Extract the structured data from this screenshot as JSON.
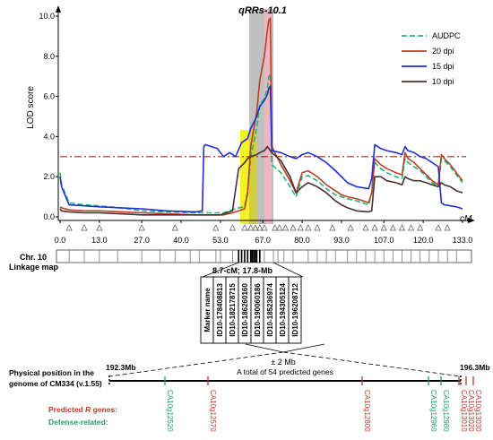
{
  "chart_data": {
    "type": "line",
    "qtl_label": "qRRs-10.1",
    "ylabel": "LOD score",
    "xunit": "cM",
    "xlim": [
      0,
      133
    ],
    "ylim": [
      0,
      10
    ],
    "yticks": [
      "0.0",
      "2.0",
      "4.0",
      "6.0",
      "8.0",
      "10.0"
    ],
    "xticks": [
      "0.0",
      "13.0",
      "27.0",
      "40.0",
      "53.0",
      "67.0",
      "80.0",
      "93.0",
      "107.0",
      "120.0",
      "133.0"
    ],
    "threshold": 3.0,
    "legend_position": "top-right",
    "series": [
      {
        "name": "AUDPC",
        "color": "#22b573",
        "dash": "6,3",
        "x": [
          0,
          0.5,
          3,
          8,
          13,
          20,
          27,
          35,
          45,
          52,
          54,
          57,
          59,
          61,
          61.5,
          62,
          63,
          65,
          66,
          67.5,
          68.5,
          69,
          69.5,
          70,
          73,
          76,
          78,
          80,
          82,
          85,
          88,
          91,
          93,
          95,
          98,
          102,
          103,
          104,
          106,
          108,
          111,
          113,
          114,
          115,
          117,
          119,
          121,
          123,
          125,
          126,
          127,
          129,
          131,
          133
        ],
        "y": [
          2.2,
          1.6,
          0.7,
          0.6,
          0.55,
          0.45,
          0.3,
          0.25,
          0.2,
          0.2,
          0.2,
          0.35,
          0.45,
          0.5,
          0.9,
          1.3,
          3.0,
          4.4,
          5.6,
          5.9,
          6.4,
          7.0,
          7.1,
          2.6,
          2.2,
          1.5,
          1.0,
          2.0,
          2.05,
          1.8,
          1.4,
          1.1,
          1.0,
          0.9,
          0.8,
          0.6,
          1.2,
          2.7,
          2.4,
          2.2,
          2.0,
          1.9,
          2.9,
          2.7,
          2.5,
          2.3,
          2.0,
          1.7,
          1.5,
          2.9,
          2.8,
          2.5,
          2.1,
          1.7
        ]
      },
      {
        "name": "20 dpi",
        "color": "#b84028",
        "dash": "",
        "x": [
          0,
          0.5,
          3,
          8,
          13,
          20,
          27,
          35,
          45,
          52,
          54,
          57,
          59,
          61,
          61.5,
          62,
          63,
          65,
          66,
          67.5,
          68.5,
          69,
          69.5,
          70,
          73,
          76,
          78,
          80,
          82,
          85,
          88,
          91,
          93,
          95,
          98,
          102,
          103,
          104,
          106,
          108,
          111,
          113,
          114,
          115,
          117,
          119,
          121,
          123,
          125,
          126,
          127,
          129,
          131,
          133
        ],
        "y": [
          0.5,
          0.45,
          0.35,
          0.3,
          0.3,
          0.25,
          0.2,
          0.15,
          0.1,
          0.1,
          0.1,
          0.2,
          0.3,
          0.4,
          0.8,
          1.2,
          3.5,
          5.2,
          6.8,
          8.0,
          9.3,
          9.8,
          9.9,
          3.5,
          2.6,
          1.8,
          1.2,
          2.2,
          2.3,
          2.0,
          1.6,
          1.3,
          1.1,
          1.0,
          0.9,
          0.7,
          1.2,
          2.9,
          2.6,
          2.4,
          2.2,
          2.1,
          3.2,
          2.9,
          2.7,
          2.4,
          2.1,
          1.8,
          1.6,
          3.1,
          2.9,
          2.6,
          2.2,
          1.8
        ]
      },
      {
        "name": "15 dpi",
        "color": "#1f2fd4",
        "dash": "",
        "x": [
          0,
          0.5,
          3,
          8,
          13,
          20,
          27,
          35,
          45,
          47,
          47.5,
          48,
          52,
          54,
          56,
          58,
          60,
          62,
          63,
          65,
          66,
          67.5,
          68.5,
          69,
          69.5,
          70,
          73,
          76,
          78,
          80,
          82,
          85,
          88,
          91,
          93,
          95,
          98,
          102,
          103,
          104,
          106,
          108,
          111,
          113,
          114,
          115,
          117,
          119,
          121,
          123,
          125,
          126,
          127,
          129,
          131,
          133
        ],
        "y": [
          2.0,
          1.5,
          0.6,
          0.55,
          0.5,
          0.45,
          0.4,
          0.3,
          0.25,
          0.3,
          3.5,
          3.6,
          3.4,
          3.0,
          3.2,
          3.0,
          3.7,
          3.9,
          4.4,
          5.0,
          5.5,
          5.8,
          6.1,
          6.4,
          6.5,
          3.3,
          3.2,
          3.0,
          2.9,
          3.1,
          3.2,
          3.0,
          2.7,
          2.3,
          2.0,
          1.7,
          1.5,
          1.4,
          1.9,
          3.6,
          3.4,
          3.3,
          3.2,
          3.1,
          3.5,
          3.3,
          3.2,
          3.0,
          2.9,
          2.7,
          2.5,
          0.7,
          0.6,
          0.55,
          0.5,
          0.4
        ]
      },
      {
        "name": "10 dpi",
        "color": "#4a3030",
        "dash": "",
        "x": [
          0,
          0.5,
          3,
          8,
          13,
          20,
          27,
          35,
          45,
          50,
          53,
          54,
          55,
          57,
          59,
          61,
          62,
          63,
          65,
          66,
          67.5,
          68.5,
          69,
          70,
          73,
          76,
          78,
          80,
          82,
          85,
          88,
          91,
          93,
          95,
          98,
          102,
          103,
          104,
          106,
          108,
          111,
          113,
          114,
          115,
          117,
          119,
          121,
          123,
          125,
          126,
          127,
          129,
          131,
          133
        ],
        "y": [
          0.4,
          0.3,
          0.25,
          0.2,
          0.2,
          0.15,
          0.1,
          0.1,
          0.1,
          0.1,
          0.1,
          0.15,
          0.2,
          0.3,
          2.4,
          2.7,
          2.9,
          3.0,
          3.1,
          3.2,
          3.3,
          3.5,
          3.4,
          3.2,
          2.8,
          2.0,
          1.2,
          1.5,
          1.7,
          1.5,
          1.2,
          0.8,
          0.6,
          0.45,
          0.3,
          0.25,
          0.3,
          2.0,
          2.0,
          1.8,
          1.7,
          1.6,
          2.0,
          1.9,
          1.8,
          1.8,
          1.7,
          1.6,
          1.5,
          1.7,
          1.6,
          1.5,
          1.3,
          1.2
        ]
      }
    ],
    "linkage": {
      "chr_label": "Chr. 10",
      "map_label": "Linkage map",
      "interval_text": "8.7-cM; 17.8-Mb",
      "marker_header": "Marker name",
      "markers": [
        "ID10-178408813",
        "ID10-182178715",
        "ID10-186260160",
        "ID10-190060186",
        "ID10-185236974",
        "ID10-194305124",
        "ID10-196208712"
      ]
    },
    "physical": {
      "label_line1": "Physical position in the",
      "label_line2": "genome of CM334 (v.1.55)",
      "start": "192.3Mb",
      "end": "196.3Mb",
      "pm": "± 2 Mb",
      "total": "A total of 54 predicted genes",
      "legend_r": "Predicted R genes:",
      "legend_d": "Defense-related:",
      "genes": [
        {
          "id": "CA10g12520",
          "type": "defense"
        },
        {
          "id": "CA10g12570",
          "type": "r"
        },
        {
          "id": "CA10g12800",
          "type": "r"
        },
        {
          "id": "CA10g12960",
          "type": "defense"
        },
        {
          "id": "CA10g12980",
          "type": "defense"
        },
        {
          "id": "CA10g13010",
          "type": "r"
        },
        {
          "id": "CA10g13020",
          "type": "r"
        },
        {
          "id": "CA10g13030",
          "type": "r"
        }
      ]
    },
    "colors": {
      "r_gene": "#c0392b",
      "defense": "#1fa060",
      "threshold": "#b0201a",
      "gray_band": "#8c8c8c",
      "yellow_band": "#f0f000",
      "pink_band": "#f4b5be"
    }
  }
}
